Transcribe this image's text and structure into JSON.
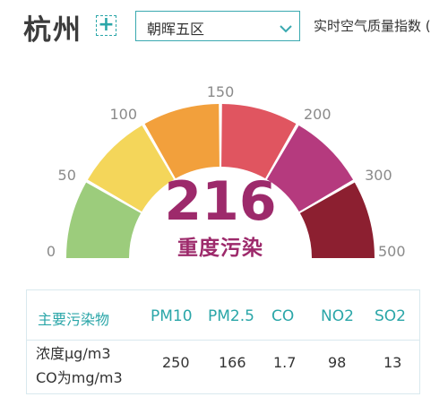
{
  "header": {
    "city": "杭州",
    "add_symbol": "+",
    "station_selected": "朝晖五区",
    "aqi_caption": "实时空气质量指数 ("
  },
  "gauge": {
    "ticks": [
      "0",
      "50",
      "100",
      "150",
      "200",
      "300",
      "500"
    ],
    "segment_colors": [
      "#9ccc7c",
      "#f4d65a",
      "#f2a03c",
      "#e05560",
      "#b53a7e",
      "#8c1f30"
    ],
    "aqi_value": "216",
    "aqi_level": "重度污染",
    "value_color": "#9d2a6b"
  },
  "pollutants": {
    "header_label": "主要污染物",
    "columns": [
      "PM10",
      "PM2.5",
      "CO",
      "NO2",
      "SO2"
    ],
    "row_label_line1": "浓度μg/m3",
    "row_label_line2": "CO为mg/m3",
    "values": [
      "250",
      "166",
      "1.7",
      "98",
      "13"
    ]
  }
}
